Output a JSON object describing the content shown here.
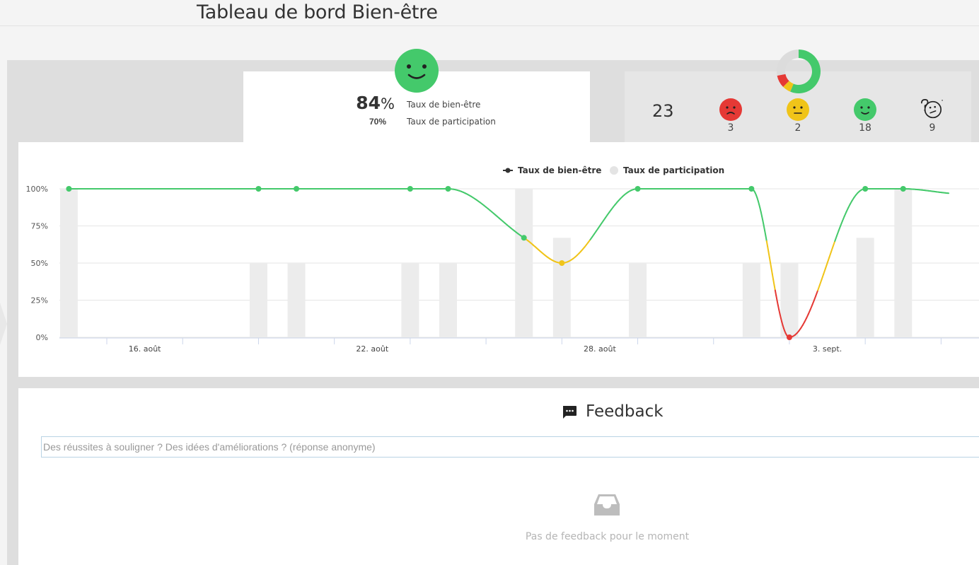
{
  "header": {
    "title": "Tableau de bord Bien-être"
  },
  "summary": {
    "welfare_value": "84",
    "welfare_symbol": "%",
    "welfare_label": "Taux de bien-être",
    "participation_value": "70%",
    "participation_label": "Taux de participation"
  },
  "stats": {
    "total": "23",
    "sad_count": "3",
    "neutral_count": "2",
    "happy_count": "18",
    "unknown_count": "9",
    "donut": {
      "sad": 3,
      "neutral": 2,
      "happy": 18,
      "unknown": 9
    }
  },
  "colors": {
    "happy": "#44c96b",
    "neutral": "#f0c419",
    "sad": "#e53935",
    "bar": "#ececec",
    "grid": "#e6e6e6"
  },
  "chart_data": {
    "type": "line",
    "legend": [
      {
        "name": "Taux de bien-être"
      },
      {
        "name": "Taux de participation"
      }
    ],
    "yticks": [
      "0%",
      "25%",
      "50%",
      "75%",
      "100%"
    ],
    "ylim": [
      0,
      100
    ],
    "xticks": [
      "16. août",
      "22. août",
      "28. août",
      "3. sept."
    ],
    "xlim": [
      13.75,
      38.0
    ],
    "series": [
      {
        "name": "Taux de bien-être",
        "points": [
          [
            14,
            100
          ],
          [
            19,
            100
          ],
          [
            20,
            100
          ],
          [
            23,
            100
          ],
          [
            24,
            100
          ],
          [
            26,
            67
          ],
          [
            27,
            50
          ],
          [
            29,
            100
          ],
          [
            32,
            100
          ],
          [
            33,
            0
          ],
          [
            35,
            100
          ],
          [
            36,
            100
          ],
          [
            37.2,
            97
          ]
        ]
      },
      {
        "name": "Taux de participation",
        "bars": [
          [
            14,
            100
          ],
          [
            19,
            50
          ],
          [
            20,
            50
          ],
          [
            23,
            50
          ],
          [
            24,
            50
          ],
          [
            26,
            100
          ],
          [
            27,
            67
          ],
          [
            29,
            50
          ],
          [
            32,
            50
          ],
          [
            33,
            50
          ],
          [
            35,
            67
          ],
          [
            36,
            100
          ]
        ]
      }
    ],
    "grid": true,
    "legend_position": "top"
  },
  "feedback": {
    "title": "Feedback",
    "placeholder": "Des réussites à souligner ? Des idées d'améliorations ? (réponse anonyme)",
    "empty_message": "Pas de feedback pour le moment"
  }
}
